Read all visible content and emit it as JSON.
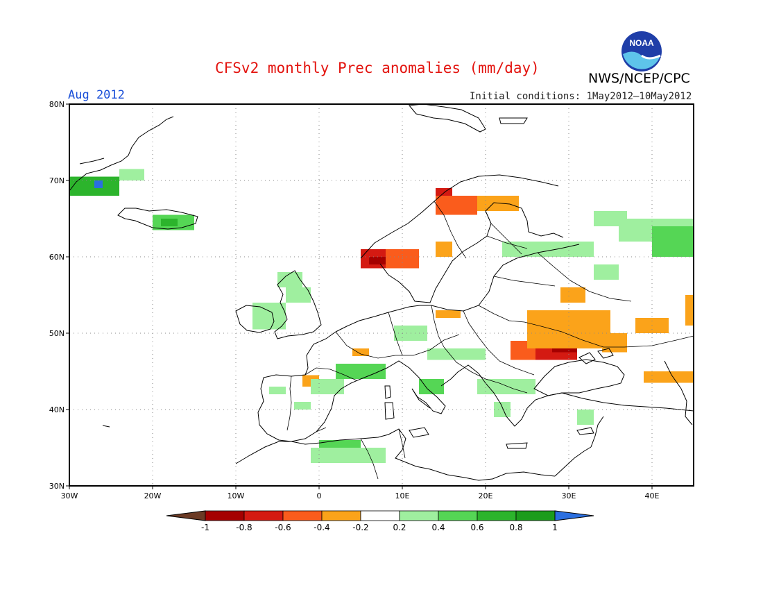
{
  "header": {
    "title": "CFSv2 monthly Prec anomalies (mm/day)",
    "agency": "NWS/NCEP/CPC",
    "logo_text": "NOAA",
    "target_month": "Aug 2012",
    "initial_conditions": "Initial conditions: 1May2012—10May2012"
  },
  "map": {
    "x_ticks": [
      "30W",
      "20W",
      "10W",
      "0",
      "10E",
      "20E",
      "30E",
      "40E"
    ],
    "y_ticks": [
      "80N",
      "70N",
      "60N",
      "50N",
      "40N",
      "30N"
    ],
    "lon_range": [
      -30,
      45
    ],
    "lat_range": [
      30,
      80
    ]
  },
  "colorbar": {
    "labels": [
      "-1",
      "-0.8",
      "-0.6",
      "-0.4",
      "-0.2",
      "0.2",
      "0.4",
      "0.6",
      "0.8",
      "1"
    ],
    "colors": [
      "#6b3a24",
      "#a50000",
      "#d41a12",
      "#fa5c1c",
      "#fba31a",
      "#ffffff",
      "#9fef9f",
      "#55d655",
      "#2cb42c",
      "#1c9c1c",
      "#2b6fe0"
    ]
  },
  "chart_data": {
    "type": "heatmap",
    "title": "CFSv2 monthly Prec anomalies (mm/day)",
    "units": "mm/day",
    "valid_month": "Aug 2012",
    "grid_resolution_deg": 1,
    "regions": [
      {
        "lon": [
          -30,
          -24
        ],
        "lat": [
          68,
          70.5
        ],
        "value": 0.6
      },
      {
        "lon": [
          -27,
          -26
        ],
        "lat": [
          69,
          70
        ],
        "value": 1.0
      },
      {
        "lon": [
          -24,
          -21
        ],
        "lat": [
          70,
          71.5
        ],
        "value": 0.3
      },
      {
        "lon": [
          -20,
          -15
        ],
        "lat": [
          63.5,
          65.5
        ],
        "value": 0.4
      },
      {
        "lon": [
          -19,
          -17
        ],
        "lat": [
          64,
          65
        ],
        "value": 0.7
      },
      {
        "lon": [
          -8,
          -4
        ],
        "lat": [
          50.5,
          54
        ],
        "value": 0.3
      },
      {
        "lon": [
          -4,
          -1
        ],
        "lat": [
          54,
          56
        ],
        "value": 0.3
      },
      {
        "lon": [
          -5,
          -2
        ],
        "lat": [
          56,
          58
        ],
        "value": 0.2
      },
      {
        "lon": [
          5,
          8
        ],
        "lat": [
          58.5,
          61
        ],
        "value": -0.6
      },
      {
        "lon": [
          6,
          8
        ],
        "lat": [
          59,
          60
        ],
        "value": -0.8
      },
      {
        "lon": [
          8,
          12
        ],
        "lat": [
          58.5,
          61
        ],
        "value": -0.4
      },
      {
        "lon": [
          14,
          16
        ],
        "lat": [
          67,
          69
        ],
        "value": -0.6
      },
      {
        "lon": [
          14,
          19
        ],
        "lat": [
          65.5,
          68
        ],
        "value": -0.4
      },
      {
        "lon": [
          19,
          24
        ],
        "lat": [
          66,
          68
        ],
        "value": -0.3
      },
      {
        "lon": [
          14,
          16
        ],
        "lat": [
          60,
          62
        ],
        "value": -0.3
      },
      {
        "lon": [
          25,
          31
        ],
        "lat": [
          46.5,
          51.5
        ],
        "value": -0.6
      },
      {
        "lon": [
          28,
          31
        ],
        "lat": [
          47.5,
          50
        ],
        "value": -0.8
      },
      {
        "lon": [
          23,
          26
        ],
        "lat": [
          46.5,
          49
        ],
        "value": -0.5
      },
      {
        "lon": [
          25,
          35
        ],
        "lat": [
          48,
          53
        ],
        "value": -0.3
      },
      {
        "lon": [
          29,
          32
        ],
        "lat": [
          54,
          56
        ],
        "value": -0.3
      },
      {
        "lon": [
          34,
          37
        ],
        "lat": [
          47.5,
          50
        ],
        "value": -0.3
      },
      {
        "lon": [
          39,
          45
        ],
        "lat": [
          43.5,
          45
        ],
        "value": -0.3
      },
      {
        "lon": [
          44,
          45
        ],
        "lat": [
          51,
          55
        ],
        "value": -0.3
      },
      {
        "lon": [
          38,
          42
        ],
        "lat": [
          50,
          52
        ],
        "value": -0.3
      },
      {
        "lon": [
          -2,
          0
        ],
        "lat": [
          43,
          44.5
        ],
        "value": -0.3
      },
      {
        "lon": [
          4,
          6
        ],
        "lat": [
          47,
          48
        ],
        "value": -0.3
      },
      {
        "lon": [
          14,
          17
        ],
        "lat": [
          52,
          53
        ],
        "value": -0.3
      },
      {
        "lon": [
          33,
          37
        ],
        "lat": [
          64,
          66
        ],
        "value": 0.3
      },
      {
        "lon": [
          36,
          45
        ],
        "lat": [
          62,
          65
        ],
        "value": 0.3
      },
      {
        "lon": [
          40,
          45
        ],
        "lat": [
          60,
          64
        ],
        "value": 0.4
      },
      {
        "lon": [
          22,
          33
        ],
        "lat": [
          60,
          62
        ],
        "value": 0.3
      },
      {
        "lon": [
          33,
          36
        ],
        "lat": [
          57,
          59
        ],
        "value": 0.3
      },
      {
        "lon": [
          2,
          8
        ],
        "lat": [
          44,
          46
        ],
        "value": 0.4
      },
      {
        "lon": [
          12,
          15
        ],
        "lat": [
          42,
          44
        ],
        "value": 0.4
      },
      {
        "lon": [
          9,
          13
        ],
        "lat": [
          49,
          51
        ],
        "value": 0.3
      },
      {
        "lon": [
          13,
          20
        ],
        "lat": [
          46.5,
          48
        ],
        "value": 0.3
      },
      {
        "lon": [
          19,
          26
        ],
        "lat": [
          42,
          44
        ],
        "value": 0.3
      },
      {
        "lon": [
          21,
          23
        ],
        "lat": [
          39,
          41
        ],
        "value": 0.3
      },
      {
        "lon": [
          31,
          33
        ],
        "lat": [
          38,
          40
        ],
        "value": 0.3
      },
      {
        "lon": [
          -1,
          3
        ],
        "lat": [
          42,
          44
        ],
        "value": 0.3
      },
      {
        "lon": [
          0,
          5
        ],
        "lat": [
          34,
          36
        ],
        "value": 0.4
      },
      {
        "lon": [
          -1,
          8
        ],
        "lat": [
          33,
          35
        ],
        "value": 0.3
      },
      {
        "lon": [
          -6,
          -4
        ],
        "lat": [
          42,
          43
        ],
        "value": 0.3
      },
      {
        "lon": [
          -3,
          -1
        ],
        "lat": [
          40,
          41
        ],
        "value": 0.3
      }
    ]
  }
}
